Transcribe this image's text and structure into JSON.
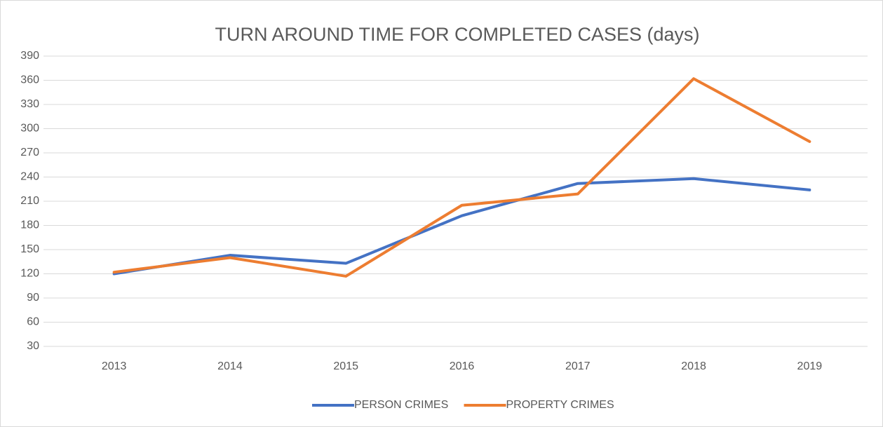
{
  "chart_data": {
    "type": "line",
    "title": "TURN AROUND TIME FOR COMPLETED CASES (days)",
    "categories": [
      "2013",
      "2014",
      "2015",
      "2016",
      "2017",
      "2018",
      "2019"
    ],
    "series": [
      {
        "name": "PERSON CRIMES",
        "color": "#4472c4",
        "values": [
          120,
          143,
          133,
          192,
          232,
          238,
          224
        ]
      },
      {
        "name": "PROPERTY CRIMES",
        "color": "#ed7d31",
        "values": [
          122,
          140,
          117,
          205,
          219,
          362,
          284
        ]
      }
    ],
    "ylim": [
      30,
      390
    ],
    "yticks": [
      30,
      60,
      90,
      120,
      150,
      180,
      210,
      240,
      270,
      300,
      330,
      360,
      390
    ],
    "grid": true,
    "legend": "bottom"
  }
}
